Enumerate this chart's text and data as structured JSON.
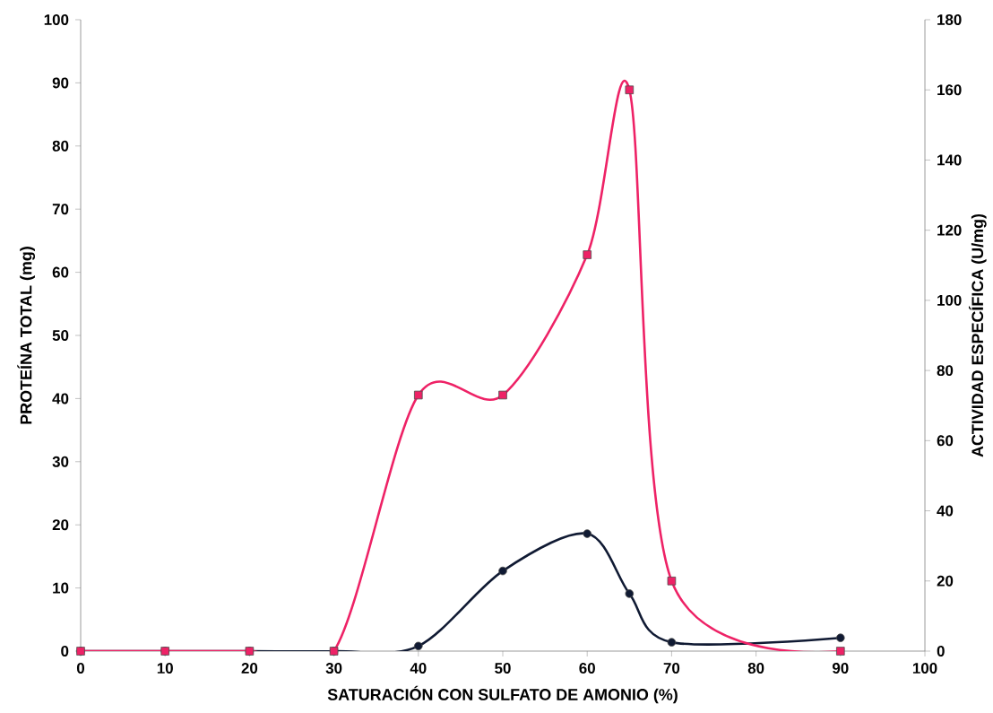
{
  "chart_data": {
    "type": "line",
    "xlabel": "SATURACIÓN CON SULFATO DE AMONIO (%)",
    "ylabel": "PROTEÍNA TOTAL (mg)",
    "y2label": "ACTIVIDAD ESPECÍFICA (U/mg)",
    "x": [
      0,
      10,
      20,
      30,
      40,
      50,
      60,
      65,
      70,
      90
    ],
    "series": [
      {
        "color": "#ee2266",
        "marker": "square",
        "axis": "y2",
        "values": [
          0,
          0,
          0,
          0,
          73,
          73,
          113,
          160,
          20,
          0
        ]
      },
      {
        "color": "#101a33",
        "marker": "circle",
        "values": [
          0,
          0,
          0,
          0,
          0.8,
          12.7,
          18.6,
          9.1,
          1.4,
          2.1
        ]
      }
    ],
    "xlim": [
      0,
      100
    ],
    "xticks": [
      0,
      10,
      20,
      30,
      40,
      50,
      60,
      70,
      80,
      90,
      100
    ],
    "ylim": [
      0,
      100
    ],
    "yticks": [
      0,
      10,
      20,
      30,
      40,
      50,
      60,
      70,
      80,
      90,
      100
    ],
    "y2lim": [
      0,
      180
    ],
    "y2ticks": [
      0,
      20,
      40,
      60,
      80,
      100,
      120,
      140,
      160,
      180
    ],
    "grid": false
  }
}
